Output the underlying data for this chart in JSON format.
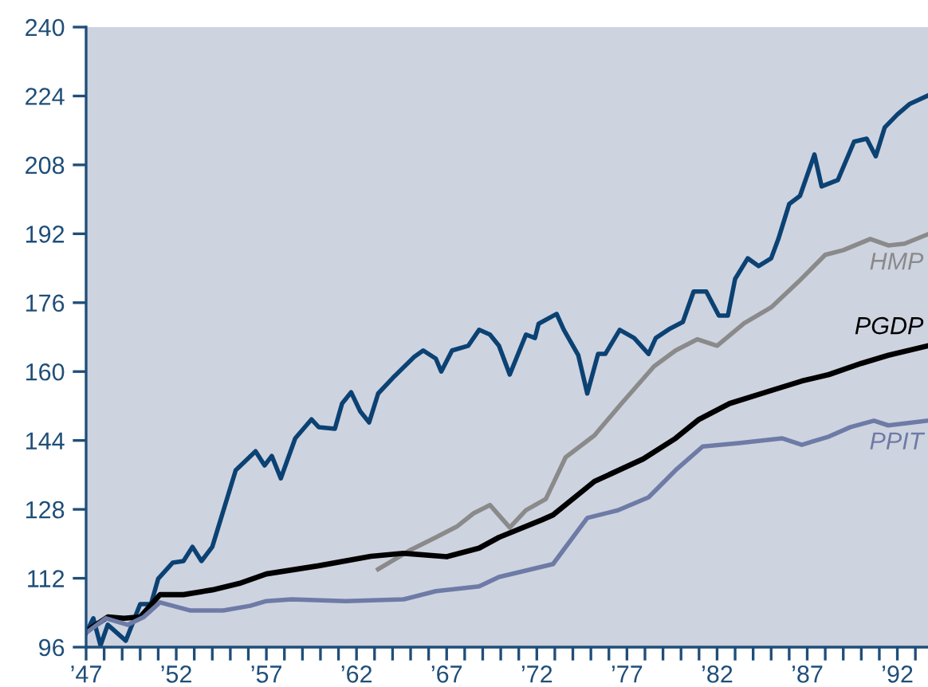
{
  "chart_data": {
    "type": "line",
    "xlim": [
      1947,
      1993.7
    ],
    "ylim": [
      96,
      240
    ],
    "yticks": [
      96,
      112,
      128,
      144,
      160,
      176,
      192,
      208,
      224,
      240
    ],
    "xticks": [
      {
        "value": 1947,
        "label": "’47"
      },
      {
        "value": 1948,
        "label": null
      },
      {
        "value": 1949,
        "label": null
      },
      {
        "value": 1950,
        "label": null
      },
      {
        "value": 1951,
        "label": null
      },
      {
        "value": 1952,
        "label": "’52"
      },
      {
        "value": 1953,
        "label": null
      },
      {
        "value": 1954,
        "label": null
      },
      {
        "value": 1955,
        "label": null
      },
      {
        "value": 1956,
        "label": null
      },
      {
        "value": 1957,
        "label": "’57"
      },
      {
        "value": 1958,
        "label": null
      },
      {
        "value": 1959,
        "label": null
      },
      {
        "value": 1960,
        "label": null
      },
      {
        "value": 1961,
        "label": null
      },
      {
        "value": 1962,
        "label": "’62"
      },
      {
        "value": 1963,
        "label": null
      },
      {
        "value": 1964,
        "label": null
      },
      {
        "value": 1965,
        "label": null
      },
      {
        "value": 1966,
        "label": null
      },
      {
        "value": 1967,
        "label": "’67"
      },
      {
        "value": 1968,
        "label": null
      },
      {
        "value": 1969,
        "label": null
      },
      {
        "value": 1970,
        "label": null
      },
      {
        "value": 1971,
        "label": null
      },
      {
        "value": 1972,
        "label": "’72"
      },
      {
        "value": 1973,
        "label": null
      },
      {
        "value": 1974,
        "label": null
      },
      {
        "value": 1975,
        "label": null
      },
      {
        "value": 1976,
        "label": null
      },
      {
        "value": 1977,
        "label": "’77"
      },
      {
        "value": 1978,
        "label": null
      },
      {
        "value": 1979,
        "label": null
      },
      {
        "value": 1980,
        "label": null
      },
      {
        "value": 1981,
        "label": null
      },
      {
        "value": 1982,
        "label": "’82"
      },
      {
        "value": 1983,
        "label": null
      },
      {
        "value": 1984,
        "label": null
      },
      {
        "value": 1985,
        "label": null
      },
      {
        "value": 1986,
        "label": null
      },
      {
        "value": 1987,
        "label": "’87"
      },
      {
        "value": 1988,
        "label": null
      },
      {
        "value": 1989,
        "label": null
      },
      {
        "value": 1990,
        "label": null
      },
      {
        "value": 1991,
        "label": null
      },
      {
        "value": 1992,
        "label": "’92"
      },
      {
        "value": 1993,
        "label": null
      }
    ],
    "grid": false,
    "legend": false,
    "marker": "none",
    "line_style": "solid",
    "series": [
      {
        "color": "#0b4273",
        "x": [
          1947.0,
          1947.4,
          1947.8,
          1948.2,
          1949.2,
          1950.0,
          1950.6,
          1951.0,
          1951.8,
          1952.4,
          1952.9,
          1953.4,
          1954.0,
          1955.3,
          1956.4,
          1956.9,
          1957.3,
          1957.8,
          1958.6,
          1959.5,
          1959.9,
          1960.8,
          1961.2,
          1961.7,
          1962.2,
          1962.7,
          1963.2,
          1964.1,
          1965.2,
          1965.7,
          1966.4,
          1966.7,
          1967.3,
          1968.2,
          1968.8,
          1969.4,
          1969.9,
          1970.5,
          1971.4,
          1971.9,
          1972.1,
          1973.1,
          1973.5,
          1974.3,
          1974.8,
          1975.4,
          1975.8,
          1976.6,
          1977.4,
          1978.2,
          1978.6,
          1979.4,
          1980.1,
          1980.7,
          1981.4,
          1982.1,
          1982.6,
          1983.0,
          1983.7,
          1984.3,
          1985.0,
          1985.4,
          1986.0,
          1986.6,
          1987.4,
          1987.8,
          1988.7,
          1989.6,
          1990.3,
          1990.8,
          1991.3,
          1992.0,
          1992.7,
          1993.7
        ],
        "values": [
          99.3,
          102.7,
          96.4,
          101.2,
          97.5,
          106,
          106,
          111.9,
          115.6,
          116,
          119.3,
          116,
          119.3,
          137.1,
          141.5,
          138.2,
          140.4,
          135.2,
          144.5,
          148.9,
          147.1,
          146.7,
          152.6,
          155.2,
          150.8,
          148.2,
          154.9,
          158.9,
          163.4,
          164.9,
          163,
          160,
          164.9,
          166,
          169.7,
          168.6,
          166,
          159.3,
          168.6,
          167.8,
          171.1,
          173.4,
          169.7,
          163.8,
          154.9,
          164.1,
          164.1,
          169.7,
          167.8,
          164.1,
          167.8,
          170,
          171.5,
          178.6,
          178.6,
          173,
          173,
          181.5,
          186.3,
          184.5,
          186.3,
          190.8,
          198.9,
          200.8,
          210.4,
          203,
          204.5,
          213.4,
          214.1,
          210,
          216.7,
          219.7,
          222.2,
          224.1
        ]
      },
      {
        "name": "HMP",
        "color": "#8a8a8a",
        "x": [
          1963.2,
          1965.0,
          1966.4,
          1967.6,
          1968.5,
          1969.4,
          1970.5,
          1971.4,
          1972.5,
          1973.6,
          1975.2,
          1976.7,
          1978.5,
          1979.7,
          1980.9,
          1982.0,
          1983.5,
          1985.0,
          1986.5,
          1988.0,
          1989.0,
          1990.5,
          1991.5,
          1992.4,
          1993.7
        ],
        "values": [
          114.1,
          118.6,
          121.5,
          124.1,
          127.1,
          129,
          123.8,
          127.8,
          130.4,
          140.1,
          145.2,
          152.6,
          161.2,
          164.9,
          167.5,
          166,
          171.2,
          174.9,
          180.8,
          187.1,
          188.2,
          190.8,
          189.3,
          189.7,
          191.9
        ]
      },
      {
        "name": "PGDP",
        "color": "#000000",
        "x": [
          1947.0,
          1948.2,
          1949.1,
          1950.0,
          1951.1,
          1952.4,
          1954.0,
          1955.5,
          1957.0,
          1959.9,
          1962.8,
          1964.6,
          1967.0,
          1968.8,
          1969.9,
          1972.3,
          1972.9,
          1975.2,
          1977.9,
          1979.7,
          1981.0,
          1982.7,
          1984.7,
          1986.7,
          1988.2,
          1990.0,
          1991.5,
          1993.7
        ],
        "values": [
          99.7,
          103,
          102.7,
          103,
          108.2,
          108.2,
          109.3,
          110.8,
          113,
          114.9,
          117.1,
          117.8,
          117,
          119,
          121.5,
          125.6,
          126.7,
          134.5,
          139.7,
          144.5,
          148.9,
          152.6,
          155.2,
          157.8,
          159.3,
          161.9,
          163.8,
          166
        ]
      },
      {
        "name": "PPIT",
        "color": "#6d7ba6",
        "x": [
          1947.0,
          1948.1,
          1949.3,
          1950.2,
          1951.1,
          1952.8,
          1954.6,
          1956.1,
          1957.0,
          1958.4,
          1961.4,
          1964.6,
          1966.4,
          1967.9,
          1968.8,
          1969.9,
          1972.9,
          1974.8,
          1976.5,
          1978.2,
          1979.7,
          1981.2,
          1983.2,
          1985.6,
          1986.7,
          1988.2,
          1989.4,
          1990.7,
          1991.5,
          1993.7
        ],
        "values": [
          99.3,
          102.7,
          101.2,
          103,
          106.4,
          104.5,
          104.5,
          105.6,
          106.7,
          107.1,
          106.7,
          107.1,
          109,
          109.7,
          110.1,
          112.3,
          115.3,
          126,
          127.8,
          130.8,
          137.1,
          142.6,
          143.4,
          144.5,
          143,
          144.9,
          147.1,
          148.6,
          147.5,
          148.6
        ]
      }
    ]
  }
}
